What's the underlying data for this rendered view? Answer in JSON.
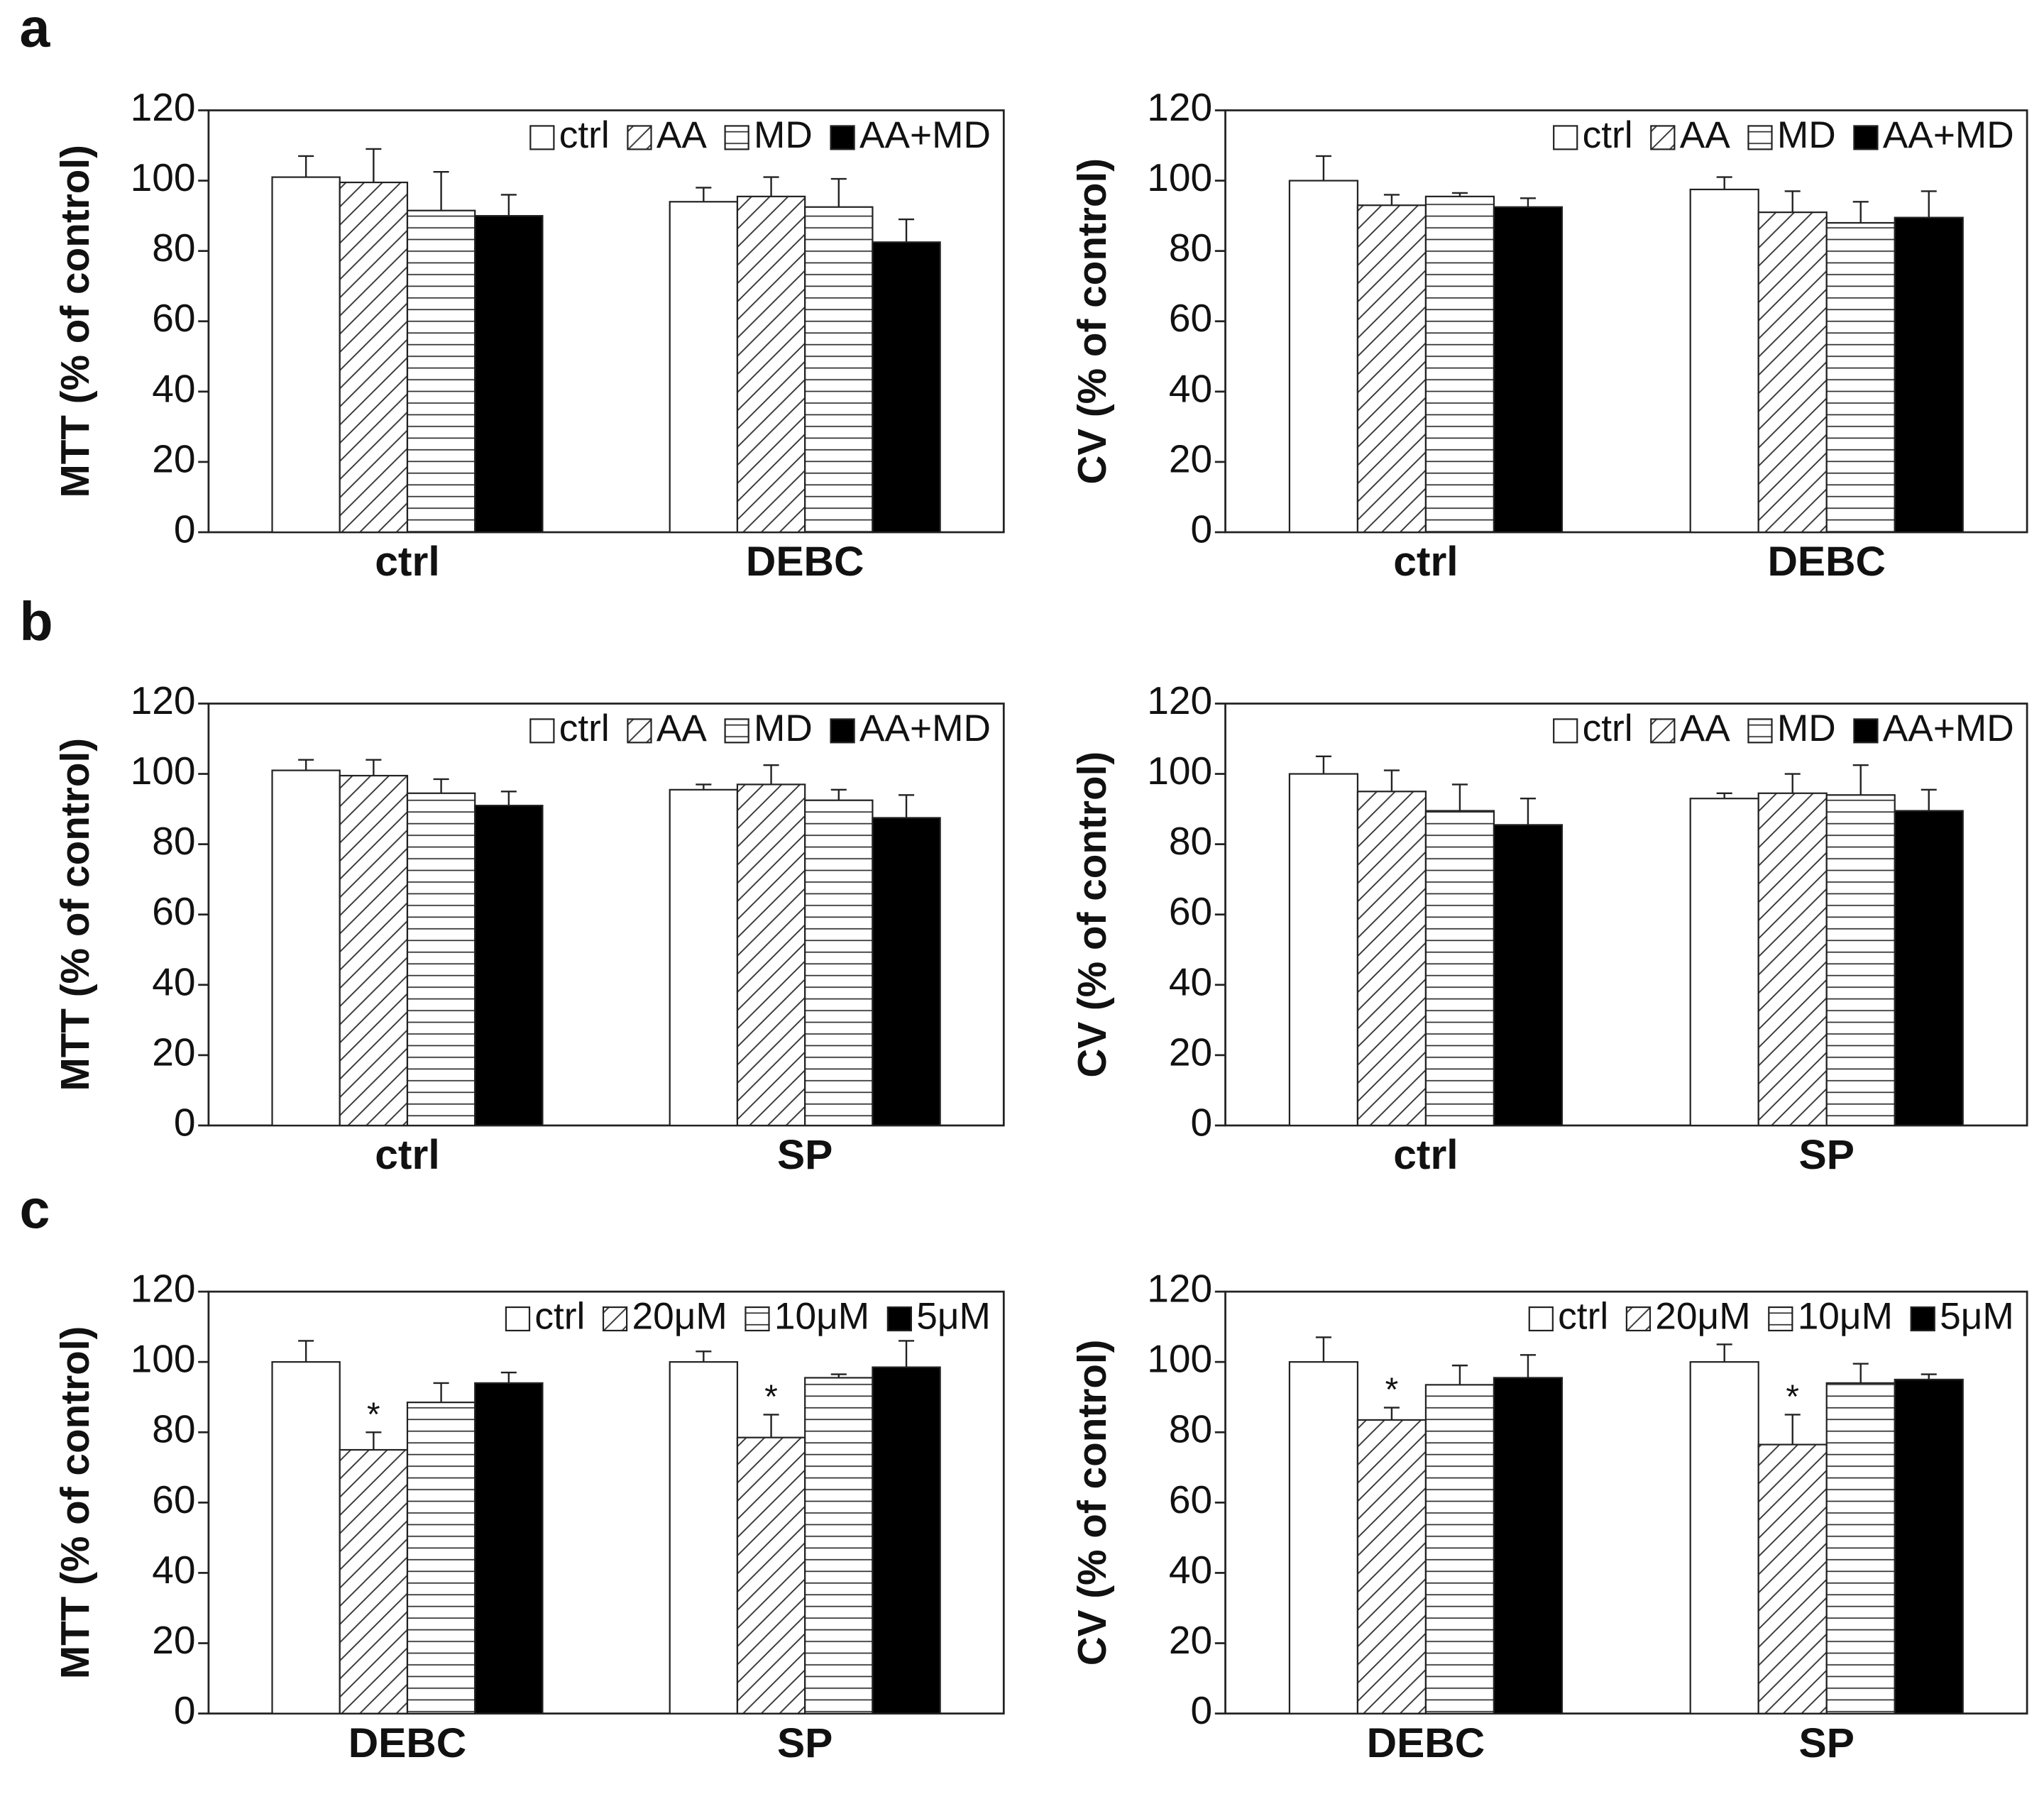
{
  "chart_data": [
    {
      "type": "bar",
      "panel": "a",
      "ylabel": "MTT (% of control)",
      "categories": [
        "ctrl",
        "DEBC"
      ],
      "ylim": [
        0,
        120
      ],
      "yticks": [
        0,
        20,
        40,
        60,
        80,
        100,
        120
      ],
      "legend": "upper right",
      "series": [
        {
          "name": "ctrl",
          "pattern": "open",
          "color": "#ffffff",
          "values": [
            101,
            94
          ],
          "errors": [
            6,
            4
          ]
        },
        {
          "name": "AA",
          "pattern": "diagonal",
          "color": "#ffffff",
          "values": [
            99.5,
            95.5
          ],
          "errors": [
            9.5,
            5.5
          ]
        },
        {
          "name": "MD",
          "pattern": "horizontal",
          "color": "#ffffff",
          "values": [
            91.5,
            92.5
          ],
          "errors": [
            11,
            8
          ]
        },
        {
          "name": "AA+MD",
          "pattern": "solid",
          "color": "#000000",
          "values": [
            90,
            82.5
          ],
          "errors": [
            6,
            6.5
          ]
        }
      ]
    },
    {
      "type": "bar",
      "ylabel": "CV (% of control)",
      "categories": [
        "ctrl",
        "DEBC"
      ],
      "ylim": [
        0,
        120
      ],
      "yticks": [
        0,
        20,
        40,
        60,
        80,
        100,
        120
      ],
      "legend": "upper right",
      "series": [
        {
          "name": "ctrl",
          "pattern": "open",
          "color": "#ffffff",
          "values": [
            100,
            97.5
          ],
          "errors": [
            7,
            3.5
          ]
        },
        {
          "name": "AA",
          "pattern": "diagonal",
          "color": "#ffffff",
          "values": [
            93,
            91
          ],
          "errors": [
            3,
            6
          ]
        },
        {
          "name": "MD",
          "pattern": "horizontal",
          "color": "#ffffff",
          "values": [
            95.5,
            88
          ],
          "errors": [
            1,
            6
          ]
        },
        {
          "name": "AA+MD",
          "pattern": "solid",
          "color": "#000000",
          "values": [
            92.5,
            89.5
          ],
          "errors": [
            2.5,
            7.5
          ]
        }
      ]
    },
    {
      "type": "bar",
      "panel": "b",
      "ylabel": "MTT (% of control)",
      "categories": [
        "ctrl",
        "SP"
      ],
      "ylim": [
        0,
        120
      ],
      "yticks": [
        0,
        20,
        40,
        60,
        80,
        100,
        120
      ],
      "legend": "upper right",
      "series": [
        {
          "name": "ctrl",
          "pattern": "open",
          "color": "#ffffff",
          "values": [
            101,
            95.5
          ],
          "errors": [
            3,
            1.5
          ]
        },
        {
          "name": "AA",
          "pattern": "diagonal",
          "color": "#ffffff",
          "values": [
            99.5,
            97
          ],
          "errors": [
            4.5,
            5.5
          ]
        },
        {
          "name": "MD",
          "pattern": "horizontal",
          "color": "#ffffff",
          "values": [
            94.5,
            92.5
          ],
          "errors": [
            4,
            3
          ]
        },
        {
          "name": "AA+MD",
          "pattern": "solid",
          "color": "#000000",
          "values": [
            91,
            87.5
          ],
          "errors": [
            4,
            6.5
          ]
        }
      ]
    },
    {
      "type": "bar",
      "ylabel": "CV (% of control)",
      "categories": [
        "ctrl",
        "SP"
      ],
      "ylim": [
        0,
        120
      ],
      "yticks": [
        0,
        20,
        40,
        60,
        80,
        100,
        120
      ],
      "legend": "upper right",
      "series": [
        {
          "name": "ctrl",
          "pattern": "open",
          "color": "#ffffff",
          "values": [
            100,
            93
          ],
          "errors": [
            5,
            1.5
          ]
        },
        {
          "name": "AA",
          "pattern": "diagonal",
          "color": "#ffffff",
          "values": [
            95,
            94.5
          ],
          "errors": [
            6,
            5.5
          ]
        },
        {
          "name": "MD",
          "pattern": "horizontal",
          "color": "#ffffff",
          "values": [
            89.5,
            94
          ],
          "errors": [
            7.5,
            8.5
          ]
        },
        {
          "name": "AA+MD",
          "pattern": "solid",
          "color": "#000000",
          "values": [
            85.5,
            89.5
          ],
          "errors": [
            7.5,
            6
          ]
        }
      ]
    },
    {
      "type": "bar",
      "panel": "c",
      "ylabel": "MTT (% of control)",
      "categories": [
        "DEBC",
        "SP"
      ],
      "ylim": [
        0,
        120
      ],
      "yticks": [
        0,
        20,
        40,
        60,
        80,
        100,
        120
      ],
      "legend": "upper right",
      "series": [
        {
          "name": "ctrl",
          "pattern": "open",
          "color": "#ffffff",
          "values": [
            100,
            100
          ],
          "errors": [
            6,
            3
          ]
        },
        {
          "name": "20μM",
          "pattern": "diagonal",
          "color": "#ffffff",
          "values": [
            75,
            78.5
          ],
          "errors": [
            5,
            6.5
          ],
          "markers": [
            "*",
            "*"
          ]
        },
        {
          "name": "10μM",
          "pattern": "horizontal",
          "color": "#ffffff",
          "values": [
            88.5,
            95.5
          ],
          "errors": [
            5.5,
            1
          ]
        },
        {
          "name": "5μM",
          "pattern": "solid",
          "color": "#000000",
          "values": [
            94,
            98.5
          ],
          "errors": [
            3,
            7.5
          ]
        }
      ]
    },
    {
      "type": "bar",
      "ylabel": "CV (% of control)",
      "categories": [
        "DEBC",
        "SP"
      ],
      "ylim": [
        0,
        120
      ],
      "yticks": [
        0,
        20,
        40,
        60,
        80,
        100,
        120
      ],
      "legend": "upper right",
      "series": [
        {
          "name": "ctrl",
          "pattern": "open",
          "color": "#ffffff",
          "values": [
            100,
            100
          ],
          "errors": [
            7,
            5
          ]
        },
        {
          "name": "20μM",
          "pattern": "diagonal",
          "color": "#ffffff",
          "values": [
            83.5,
            76.5
          ],
          "errors": [
            3.5,
            8.5
          ],
          "markers": [
            "*",
            "*"
          ]
        },
        {
          "name": "10μM",
          "pattern": "horizontal",
          "color": "#ffffff",
          "values": [
            93.5,
            94
          ],
          "errors": [
            5.5,
            5.5
          ]
        },
        {
          "name": "5μM",
          "pattern": "solid",
          "color": "#000000",
          "values": [
            95.5,
            95
          ],
          "errors": [
            6.5,
            1.5
          ]
        }
      ]
    }
  ]
}
